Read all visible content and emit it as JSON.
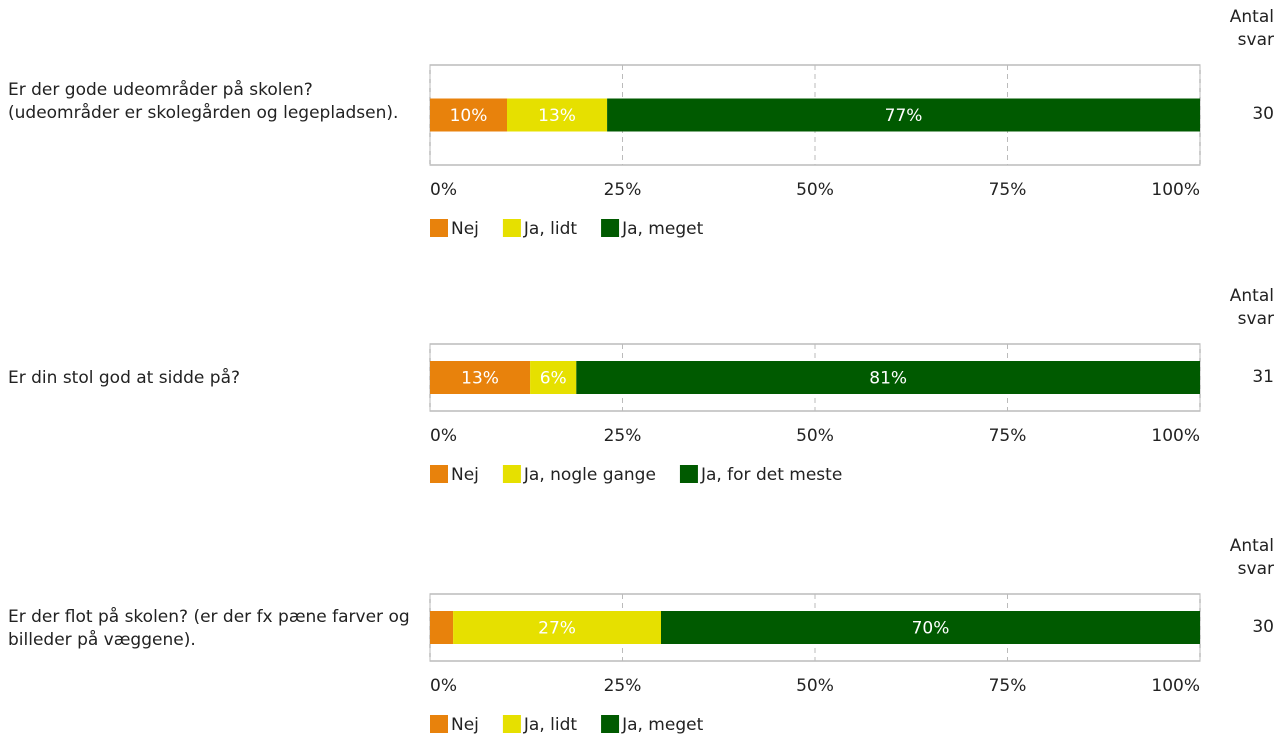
{
  "chart_data": [
    {
      "type": "bar",
      "title": "Er der gode udeområder på skolen? (udeområder er skolegården og legepladsen).",
      "count_label": "Antal svar",
      "count": 30,
      "series": [
        {
          "name": "Nej",
          "color": "#e8820c",
          "values": [
            10
          ],
          "value_labels": [
            "10%"
          ]
        },
        {
          "name": "Ja, lidt",
          "color": "#e6e000",
          "values": [
            13
          ],
          "value_labels": [
            "13%"
          ]
        },
        {
          "name": "Ja, meget",
          "color": "#005a00",
          "values": [
            77
          ],
          "value_labels": [
            "77%"
          ]
        }
      ],
      "xlim": [
        0,
        100
      ],
      "xticks": [
        {
          "value": 0,
          "label": "0%"
        },
        {
          "value": 25,
          "label": "25%"
        },
        {
          "value": 50,
          "label": "50%"
        },
        {
          "value": 75,
          "label": "75%"
        },
        {
          "value": 100,
          "label": "100%"
        }
      ],
      "grid": true,
      "stacked": true
    },
    {
      "type": "bar",
      "title": "Er din stol god at sidde på?",
      "count_label": "Antal svar",
      "count": 31,
      "series": [
        {
          "name": "Nej",
          "color": "#e8820c",
          "values": [
            13
          ],
          "value_labels": [
            "13%"
          ]
        },
        {
          "name": "Ja, nogle gange",
          "color": "#e6e000",
          "values": [
            6
          ],
          "value_labels": [
            "6%"
          ]
        },
        {
          "name": "Ja, for det meste",
          "color": "#005a00",
          "values": [
            81
          ],
          "value_labels": [
            "81%"
          ]
        }
      ],
      "xlim": [
        0,
        100
      ],
      "xticks": [
        {
          "value": 0,
          "label": "0%"
        },
        {
          "value": 25,
          "label": "25%"
        },
        {
          "value": 50,
          "label": "50%"
        },
        {
          "value": 75,
          "label": "75%"
        },
        {
          "value": 100,
          "label": "100%"
        }
      ],
      "grid": true,
      "stacked": true
    },
    {
      "type": "bar",
      "title": "Er der flot på skolen? (er der fx pæne farver og billeder på væggene).",
      "count_label": "Antal svar",
      "count": 30,
      "series": [
        {
          "name": "Nej",
          "color": "#e8820c",
          "values": [
            3
          ],
          "value_labels": [
            null
          ]
        },
        {
          "name": "Ja, lidt",
          "color": "#e6e000",
          "values": [
            27
          ],
          "value_labels": [
            "27%"
          ]
        },
        {
          "name": "Ja, meget",
          "color": "#005a00",
          "values": [
            70
          ],
          "value_labels": [
            "70%"
          ]
        }
      ],
      "xlim": [
        0,
        100
      ],
      "xticks": [
        {
          "value": 0,
          "label": "0%"
        },
        {
          "value": 25,
          "label": "25%"
        },
        {
          "value": 50,
          "label": "50%"
        },
        {
          "value": 75,
          "label": "75%"
        },
        {
          "value": 100,
          "label": "100%"
        }
      ],
      "grid": true,
      "stacked": true
    }
  ]
}
